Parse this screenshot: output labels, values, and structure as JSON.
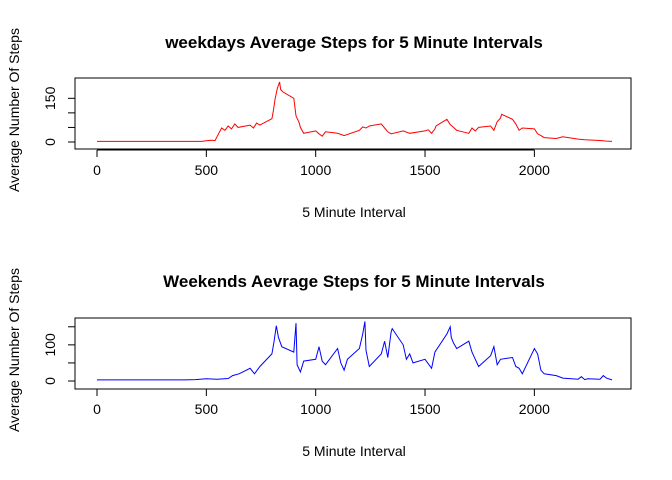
{
  "chart_data": [
    {
      "type": "line",
      "title": "weekdays Average Steps for 5 Minute Intervals",
      "xlabel": "5 Minute Interval",
      "ylabel": "Average Number Of Steps",
      "xlim": [
        0,
        2355
      ],
      "ylim": [
        0,
        206
      ],
      "xticks": [
        0,
        500,
        1000,
        1500,
        2000
      ],
      "yticks": [
        0,
        150
      ],
      "ytick_minor": [
        50,
        100
      ],
      "grid": false,
      "series": [
        {
          "color": "#ff0000",
          "x": [
            0,
            100,
            200,
            300,
            400,
            480,
            500,
            520,
            540,
            550,
            570,
            585,
            600,
            615,
            630,
            645,
            700,
            715,
            730,
            745,
            800,
            805,
            815,
            825,
            835,
            840,
            850,
            900,
            910,
            925,
            930,
            945,
            1000,
            1015,
            1030,
            1045,
            1100,
            1130,
            1200,
            1215,
            1230,
            1245,
            1300,
            1315,
            1330,
            1345,
            1400,
            1430,
            1500,
            1515,
            1530,
            1545,
            1550,
            1600,
            1615,
            1630,
            1645,
            1700,
            1715,
            1730,
            1745,
            1800,
            1815,
            1830,
            1845,
            1850,
            1900,
            1915,
            1930,
            1945,
            2000,
            2015,
            2030,
            2045,
            2100,
            2130,
            2200,
            2230,
            2300,
            2330,
            2355
          ],
          "values": [
            2,
            2,
            2,
            2,
            2,
            2,
            4,
            6,
            5,
            20,
            48,
            40,
            55,
            45,
            62,
            50,
            58,
            48,
            65,
            58,
            80,
            100,
            150,
            185,
            206,
            180,
            172,
            150,
            90,
            65,
            50,
            30,
            38,
            28,
            20,
            35,
            30,
            22,
            40,
            52,
            48,
            55,
            62,
            48,
            35,
            28,
            38,
            30,
            38,
            42,
            30,
            45,
            55,
            78,
            60,
            50,
            40,
            30,
            48,
            38,
            50,
            55,
            40,
            70,
            82,
            95,
            78,
            62,
            40,
            48,
            45,
            28,
            22,
            15,
            12,
            18,
            10,
            8,
            5,
            3,
            2
          ]
        }
      ]
    },
    {
      "type": "line",
      "title": "Weekends Aevrage Steps for 5 Minute Intervals",
      "xlabel": "5 Minute Interval",
      "ylabel": "Average Number Of Steps",
      "xlim": [
        0,
        2355
      ],
      "ylim": [
        0,
        166
      ],
      "xticks": [
        0,
        500,
        1000,
        1500,
        2000
      ],
      "yticks": [
        0,
        100
      ],
      "ytick_minor": [
        50,
        150
      ],
      "grid": false,
      "series": [
        {
          "color": "#0000ff",
          "x": [
            0,
            100,
            200,
            300,
            400,
            450,
            500,
            550,
            600,
            620,
            650,
            700,
            720,
            745,
            800,
            810,
            820,
            830,
            845,
            900,
            910,
            915,
            930,
            945,
            1000,
            1015,
            1030,
            1045,
            1100,
            1115,
            1130,
            1145,
            1200,
            1215,
            1225,
            1230,
            1245,
            1300,
            1315,
            1330,
            1345,
            1350,
            1400,
            1415,
            1430,
            1445,
            1500,
            1530,
            1545,
            1600,
            1615,
            1620,
            1630,
            1645,
            1700,
            1715,
            1730,
            1745,
            1800,
            1815,
            1830,
            1845,
            1900,
            1915,
            1930,
            1945,
            2000,
            2015,
            2030,
            2045,
            2100,
            2130,
            2200,
            2215,
            2230,
            2245,
            2300,
            2315,
            2330,
            2355
          ],
          "values": [
            3,
            3,
            3,
            3,
            3,
            4,
            6,
            5,
            7,
            15,
            20,
            35,
            20,
            40,
            75,
            110,
            153,
            120,
            95,
            80,
            160,
            45,
            25,
            55,
            60,
            95,
            55,
            45,
            90,
            50,
            30,
            60,
            90,
            130,
            165,
            85,
            40,
            75,
            110,
            65,
            135,
            145,
            100,
            60,
            75,
            50,
            60,
            35,
            80,
            130,
            150,
            120,
            105,
            90,
            110,
            80,
            60,
            40,
            70,
            95,
            45,
            60,
            65,
            40,
            35,
            20,
            90,
            75,
            30,
            20,
            15,
            8,
            5,
            12,
            4,
            6,
            5,
            15,
            8,
            3
          ]
        }
      ]
    }
  ]
}
